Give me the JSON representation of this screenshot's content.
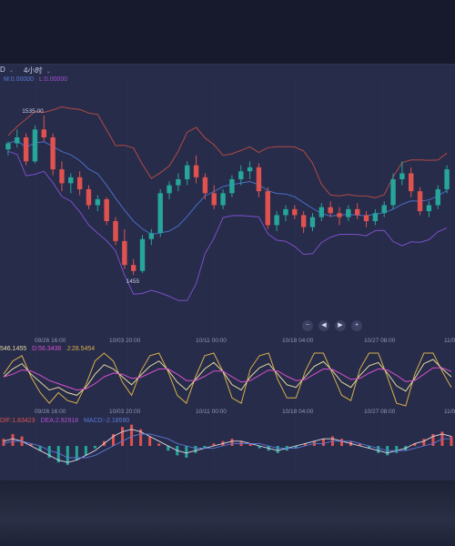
{
  "toolbar": {
    "symbol_fragment": "D",
    "interval": "4小时"
  },
  "main_indicator": {
    "ma": "M:0.00000",
    "l": "L:0.00000"
  },
  "kdj": {
    "k_label": "546.1455",
    "d_label": "D:56.3436",
    "j_label": "J:28.5454"
  },
  "macd": {
    "dif_label": "DIF:1.83423",
    "dea_label": "DEA:2.92918",
    "macd_label": "MACD:-2.18590"
  },
  "time_labels": [
    "09/26 16:00",
    "10/03 20:00",
    "10/11 00:00",
    "10/18 04:00",
    "10/27 08:00",
    "11/0"
  ],
  "colors": {
    "background": "#272c4a",
    "up": "#26a69a",
    "down": "#e0524f",
    "boll_upper": "#b14a44",
    "boll_mid": "#4a6fc8",
    "boll_lower": "#7b4fc9",
    "k_line": "#e8d9a0",
    "d_line": "#d94fd0",
    "j_line": "#d8b049",
    "dif_line": "#d9d9e6",
    "dea_line": "#5b78d6"
  },
  "nav_icons": [
    "zoom-out-icon",
    "step-back-icon",
    "step-forward-icon",
    "zoom-in-icon"
  ],
  "chart_data": {
    "type": "candlestick",
    "annotations": {
      "max_label": "1535.00",
      "min_label": "1455"
    },
    "price_range": [
      1440,
      1545
    ],
    "candles": [
      [
        1518,
        1522,
        1515,
        1521
      ],
      [
        1521,
        1528,
        1519,
        1524
      ],
      [
        1524,
        1526,
        1510,
        1512
      ],
      [
        1512,
        1530,
        1511,
        1528
      ],
      [
        1528,
        1535,
        1522,
        1524
      ],
      [
        1524,
        1526,
        1505,
        1508
      ],
      [
        1508,
        1512,
        1497,
        1501
      ],
      [
        1501,
        1506,
        1496,
        1504
      ],
      [
        1504,
        1507,
        1495,
        1498
      ],
      [
        1498,
        1500,
        1488,
        1490
      ],
      [
        1490,
        1495,
        1487,
        1493
      ],
      [
        1493,
        1494,
        1480,
        1482
      ],
      [
        1482,
        1484,
        1470,
        1472
      ],
      [
        1472,
        1478,
        1458,
        1460
      ],
      [
        1460,
        1463,
        1455,
        1457
      ],
      [
        1457,
        1475,
        1456,
        1473
      ],
      [
        1473,
        1478,
        1470,
        1476
      ],
      [
        1476,
        1498,
        1474,
        1496
      ],
      [
        1496,
        1502,
        1493,
        1500
      ],
      [
        1500,
        1506,
        1497,
        1503
      ],
      [
        1503,
        1512,
        1500,
        1510
      ],
      [
        1510,
        1515,
        1501,
        1504
      ],
      [
        1504,
        1506,
        1493,
        1496
      ],
      [
        1496,
        1500,
        1488,
        1490
      ],
      [
        1490,
        1498,
        1488,
        1496
      ],
      [
        1496,
        1505,
        1494,
        1503
      ],
      [
        1503,
        1510,
        1500,
        1507
      ],
      [
        1507,
        1512,
        1503,
        1509
      ],
      [
        1509,
        1511,
        1494,
        1497
      ],
      [
        1497,
        1499,
        1478,
        1480
      ],
      [
        1480,
        1487,
        1477,
        1485
      ],
      [
        1485,
        1490,
        1482,
        1488
      ],
      [
        1488,
        1490,
        1483,
        1485
      ],
      [
        1485,
        1487,
        1476,
        1479
      ],
      [
        1479,
        1486,
        1477,
        1484
      ],
      [
        1484,
        1491,
        1482,
        1489
      ],
      [
        1489,
        1492,
        1484,
        1486
      ],
      [
        1486,
        1489,
        1480,
        1484
      ],
      [
        1484,
        1490,
        1482,
        1488
      ],
      [
        1488,
        1491,
        1483,
        1485
      ],
      [
        1485,
        1487,
        1479,
        1482
      ],
      [
        1482,
        1488,
        1480,
        1486
      ],
      [
        1486,
        1492,
        1484,
        1490
      ],
      [
        1490,
        1506,
        1488,
        1503
      ],
      [
        1503,
        1512,
        1500,
        1506
      ],
      [
        1506,
        1509,
        1494,
        1497
      ],
      [
        1497,
        1499,
        1485,
        1487
      ],
      [
        1487,
        1492,
        1484,
        1490
      ],
      [
        1490,
        1500,
        1488,
        1498
      ],
      [
        1498,
        1510,
        1496,
        1508
      ]
    ],
    "kdj_series": {
      "K": [
        55,
        70,
        80,
        60,
        45,
        30,
        35,
        25,
        20,
        35,
        60,
        78,
        70,
        55,
        40,
        58,
        75,
        85,
        68,
        45,
        30,
        50,
        70,
        82,
        65,
        40,
        30,
        55,
        72,
        80,
        60,
        40,
        35,
        55,
        75,
        84,
        66,
        45,
        35,
        58,
        76,
        82,
        62,
        38,
        28,
        52,
        80,
        88,
        70,
        55
      ],
      "D": [
        55,
        60,
        68,
        66,
        58,
        48,
        42,
        36,
        30,
        32,
        42,
        55,
        62,
        60,
        52,
        54,
        62,
        70,
        70,
        60,
        48,
        48,
        56,
        66,
        66,
        55,
        45,
        48,
        58,
        68,
        66,
        56,
        48,
        50,
        60,
        70,
        69,
        60,
        50,
        52,
        62,
        70,
        68,
        58,
        46,
        48,
        60,
        72,
        72,
        65
      ],
      "J": [
        60,
        85,
        95,
        55,
        25,
        5,
        25,
        10,
        5,
        40,
        85,
        100,
        85,
        45,
        20,
        65,
        95,
        100,
        65,
        20,
        5,
        55,
        95,
        100,
        65,
        15,
        5,
        70,
        95,
        100,
        50,
        15,
        15,
        65,
        100,
        100,
        60,
        20,
        10,
        70,
        100,
        100,
        55,
        5,
        0,
        60,
        100,
        100,
        65,
        35
      ]
    },
    "macd_series": {
      "hist": [
        3,
        5,
        4,
        1,
        -2,
        -5,
        -7,
        -8,
        -6,
        -4,
        -1,
        2,
        5,
        8,
        9,
        7,
        4,
        1,
        -2,
        -4,
        -5,
        -3,
        -1,
        1,
        2,
        3,
        2,
        1,
        -1,
        -2,
        -3,
        -2,
        -1,
        1,
        2,
        3,
        4,
        3,
        2,
        1,
        -1,
        -3,
        -4,
        -3,
        -2,
        1,
        3,
        5,
        6,
        4
      ],
      "dif": [
        2,
        3,
        2,
        0,
        -2,
        -4,
        -6,
        -7,
        -6,
        -4,
        -2,
        1,
        4,
        6,
        7,
        6,
        4,
        2,
        0,
        -2,
        -3,
        -2,
        -1,
        0,
        1,
        2,
        2,
        1,
        0,
        -1,
        -2,
        -1,
        0,
        1,
        2,
        3,
        3,
        2,
        1,
        0,
        -1,
        -2,
        -3,
        -2,
        -1,
        1,
        2,
        4,
        5,
        4
      ],
      "dea": [
        1,
        2,
        2,
        1,
        0,
        -2,
        -3,
        -5,
        -5,
        -5,
        -4,
        -2,
        0,
        2,
        4,
        5,
        5,
        4,
        3,
        1,
        0,
        -1,
        -1,
        -1,
        0,
        1,
        1,
        1,
        1,
        0,
        -1,
        -1,
        -1,
        0,
        1,
        1,
        2,
        2,
        2,
        1,
        0,
        -1,
        -2,
        -2,
        -2,
        -1,
        0,
        1,
        3,
        3
      ]
    }
  }
}
